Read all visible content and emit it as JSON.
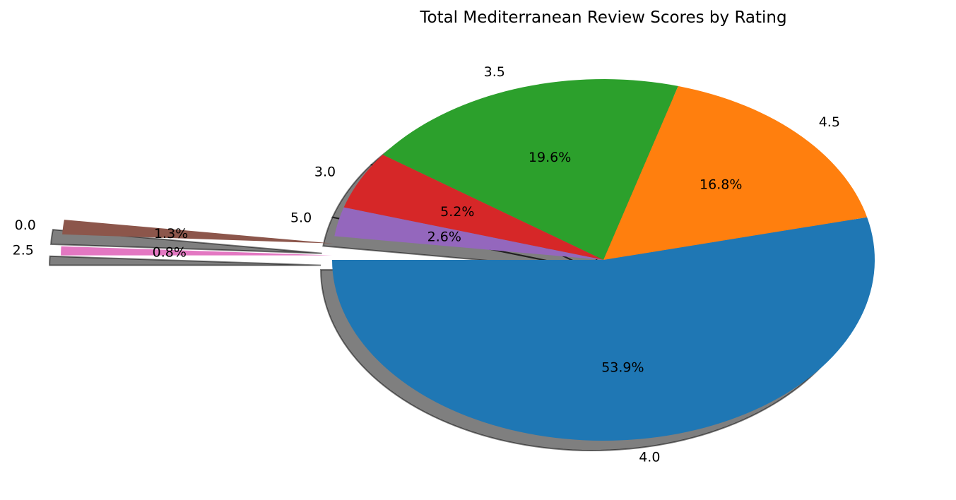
{
  "chart_data": {
    "type": "pie",
    "title": "Total Mediterranean Review Scores by Rating",
    "slices": [
      {
        "label": "4.0",
        "pct_label": "53.9%",
        "value": 53.9,
        "color": "#1f77b4",
        "exploded": false
      },
      {
        "label": "4.5",
        "pct_label": "16.8%",
        "value": 16.8,
        "color": "#ff7f0e",
        "exploded": false
      },
      {
        "label": "3.5",
        "pct_label": "19.6%",
        "value": 19.6,
        "color": "#2ca02c",
        "exploded": false
      },
      {
        "label": "3.0",
        "pct_label": "5.2%",
        "value": 5.2,
        "color": "#d62728",
        "exploded": false
      },
      {
        "label": "5.0",
        "pct_label": "2.6%",
        "value": 2.6,
        "color": "#9467bd",
        "exploded": false
      },
      {
        "label": "0.0",
        "pct_label": "1.3%",
        "value": 1.3,
        "color": "#8c564b",
        "exploded": true
      },
      {
        "label": "2.5",
        "pct_label": "0.8%",
        "value": 0.8,
        "color": "#e377c2",
        "exploded": true
      }
    ],
    "shadow": true,
    "legend": "none"
  }
}
